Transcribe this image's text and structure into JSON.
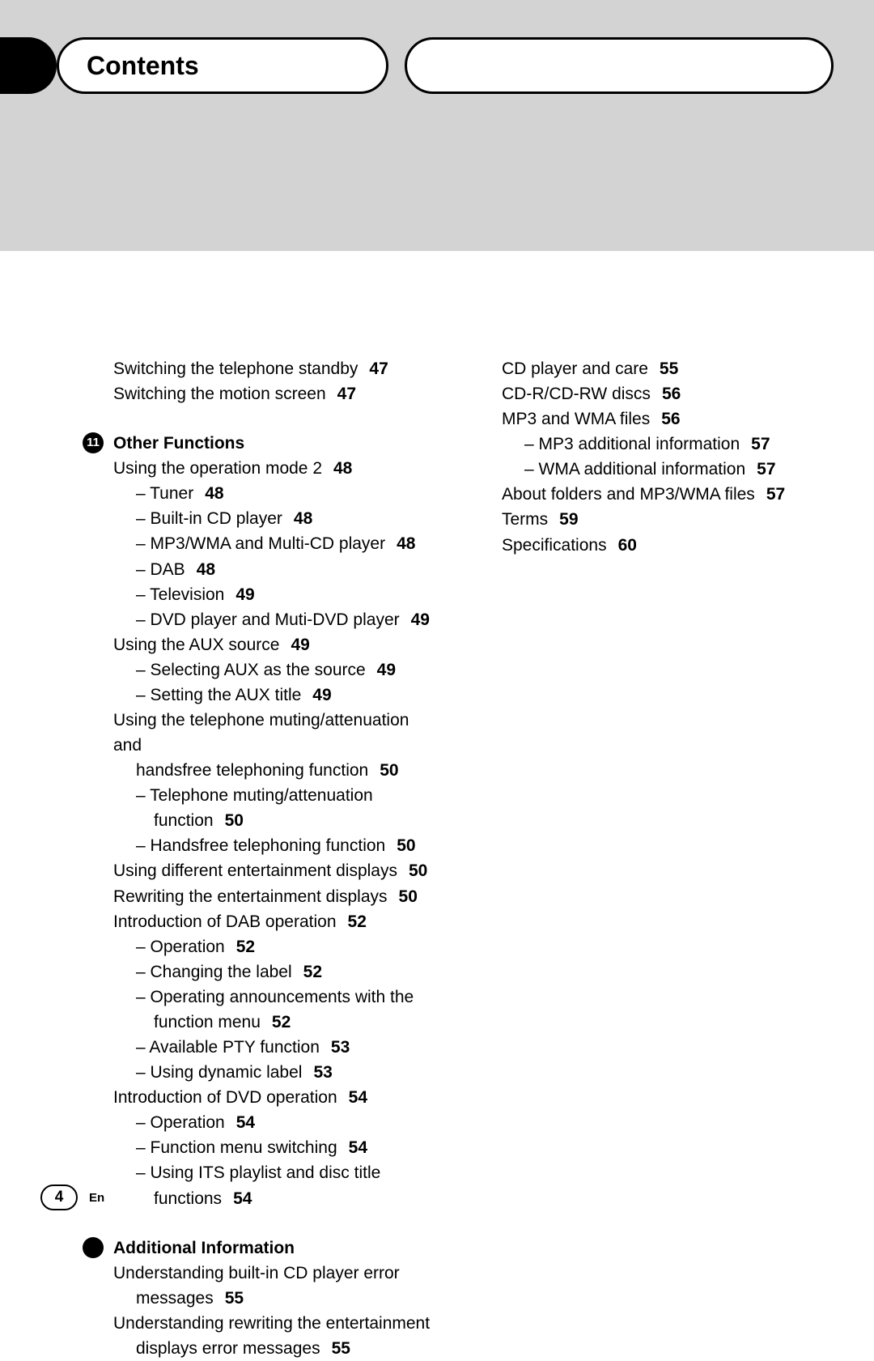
{
  "header": {
    "title": "Contents"
  },
  "footer": {
    "page": "4",
    "lang": "En"
  },
  "sections": {
    "pre": [
      {
        "lvl": "l0",
        "text": "Switching the telephone standby",
        "pg": "47"
      },
      {
        "lvl": "l0",
        "text": "Switching the motion screen",
        "pg": "47"
      }
    ],
    "s11": {
      "num": "11",
      "title": "Other Functions",
      "items": [
        {
          "lvl": "l0",
          "text": "Using the operation mode 2",
          "pg": "48"
        },
        {
          "lvl": "l1-hang",
          "text": "– Tuner",
          "pg": "48"
        },
        {
          "lvl": "l1-hang",
          "text": "– Built-in CD player",
          "pg": "48"
        },
        {
          "lvl": "l1-hang",
          "text": "– MP3/WMA and Multi-CD player",
          "pg": "48"
        },
        {
          "lvl": "l1-hang",
          "text": "– DAB",
          "pg": "48"
        },
        {
          "lvl": "l1-hang",
          "text": "– Television",
          "pg": "49"
        },
        {
          "lvl": "l1-hang",
          "text": "– DVD player and Muti-DVD player",
          "pg": "49"
        },
        {
          "lvl": "l0",
          "text": "Using the AUX source",
          "pg": "49"
        },
        {
          "lvl": "l1-hang",
          "text": "– Selecting AUX as the source",
          "pg": "49"
        },
        {
          "lvl": "l1-hang",
          "text": "– Setting the AUX title",
          "pg": "49"
        },
        {
          "lvl": "l0",
          "text": "Using the telephone muting/attenuation and"
        },
        {
          "lvl": "l1",
          "text": "handsfree telephoning function",
          "pg": "50"
        },
        {
          "lvl": "l1-hang",
          "text": "– Telephone muting/attenuation"
        },
        {
          "lvl": "l2",
          "text": "function",
          "pg": "50"
        },
        {
          "lvl": "l1-hang",
          "text": "– Handsfree telephoning function",
          "pg": "50"
        },
        {
          "lvl": "l0",
          "text": "Using different entertainment displays",
          "pg": "50"
        },
        {
          "lvl": "l0",
          "text": "Rewriting the entertainment displays",
          "pg": "50"
        },
        {
          "lvl": "l0",
          "text": "Introduction of DAB operation",
          "pg": "52"
        },
        {
          "lvl": "l1-hang",
          "text": "– Operation",
          "pg": "52"
        },
        {
          "lvl": "l1-hang",
          "text": "– Changing the label",
          "pg": "52"
        },
        {
          "lvl": "l1-hang",
          "text": "– Operating announcements with the"
        },
        {
          "lvl": "l2",
          "text": "function menu",
          "pg": "52"
        },
        {
          "lvl": "l1-hang",
          "text": "– Available PTY function",
          "pg": "53"
        },
        {
          "lvl": "l1-hang",
          "text": "– Using dynamic label",
          "pg": "53"
        },
        {
          "lvl": "l0",
          "text": "Introduction of DVD operation",
          "pg": "54"
        },
        {
          "lvl": "l1-hang",
          "text": "– Operation",
          "pg": "54"
        },
        {
          "lvl": "l1-hang",
          "text": "– Function menu switching",
          "pg": "54"
        },
        {
          "lvl": "l1-hang",
          "text": "– Using ITS playlist and disc title"
        },
        {
          "lvl": "l2",
          "text": "functions",
          "pg": "54"
        }
      ]
    },
    "addl": {
      "title": "Additional Information",
      "items": [
        {
          "lvl": "l0",
          "text": "Understanding built-in CD player error"
        },
        {
          "lvl": "l1",
          "text": "messages",
          "pg": "55"
        },
        {
          "lvl": "l0",
          "text": "Understanding rewriting the entertainment"
        },
        {
          "lvl": "l1",
          "text": "displays error messages",
          "pg": "55"
        }
      ]
    },
    "right": [
      {
        "lvl": "l0",
        "text": "CD player and care",
        "pg": "55"
      },
      {
        "lvl": "l0",
        "text": "CD-R/CD-RW discs",
        "pg": "56"
      },
      {
        "lvl": "l0",
        "text": "MP3 and WMA files",
        "pg": "56"
      },
      {
        "lvl": "l1-hang",
        "text": "– MP3 additional information",
        "pg": "57"
      },
      {
        "lvl": "l1-hang",
        "text": "– WMA additional information",
        "pg": "57"
      },
      {
        "lvl": "l0",
        "text": "About folders and MP3/WMA files",
        "pg": "57"
      },
      {
        "lvl": "l0",
        "text": "Terms",
        "pg": "59"
      },
      {
        "lvl": "l0",
        "text": "Specifications",
        "pg": "60"
      }
    ]
  }
}
